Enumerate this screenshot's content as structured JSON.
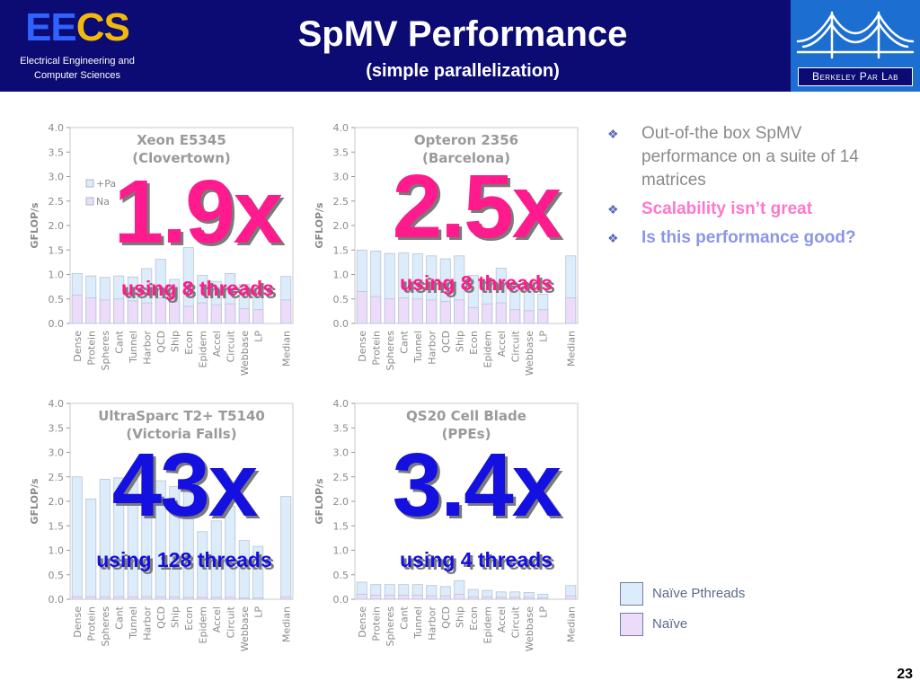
{
  "header": {
    "logo": {
      "ee": "EE",
      "cs": "CS",
      "subtitle_line1": "Electrical Engineering and",
      "subtitle_line2": "Computer Sciences"
    },
    "title": "SpMV Performance",
    "subtitle": "(simple parallelization)",
    "parlab": "Berkeley Par Lab"
  },
  "overlays": [
    {
      "value": "1.9x",
      "caption": "using 8 threads",
      "color": "pink"
    },
    {
      "value": "2.5x",
      "caption": "using 8 threads",
      "color": "pink"
    },
    {
      "value": "43x",
      "caption": "using 128 threads",
      "color": "blue"
    },
    {
      "value": "3.4x",
      "caption": "using 4 threads",
      "color": "blue"
    }
  ],
  "bullets": [
    {
      "text": "Out-of-the box SpMV performance on a suite of 14 matrices",
      "color": "#8a8a8a"
    },
    {
      "text": "Scalability isn’t great",
      "color": "#ff77cc",
      "bold": true
    },
    {
      "text": "Is this performance good?",
      "color": "#8a96e8",
      "bold": true
    }
  ],
  "legend": [
    {
      "label": "Naïve Pthreads",
      "color": "#dcecfa"
    },
    {
      "label": "Naïve",
      "color": "#ecdcfa"
    }
  ],
  "page_number": "23",
  "chart_data": [
    {
      "type": "bar",
      "title": "Xeon E5345",
      "subtitle": "(Clovertown)",
      "ylabel": "GFLOP/s",
      "ylim": [
        0,
        4.0
      ],
      "yticks": [
        "0.0",
        "0.5",
        "1.0",
        "1.5",
        "2.0",
        "2.5",
        "3.0",
        "3.5",
        "4.0"
      ],
      "categories": [
        "Dense",
        "Protein",
        "Spheres",
        "Cant",
        "Tunnel",
        "Harbor",
        "QCD",
        "Ship",
        "Econ",
        "Epidem",
        "Accel",
        "Circuit",
        "Webbase",
        "LP",
        "",
        "Median"
      ],
      "legend_fragments": [
        "+Pa",
        "Na"
      ],
      "series": [
        {
          "name": "Naïve Pthreads",
          "values": [
            1.02,
            0.97,
            0.94,
            0.97,
            0.95,
            1.12,
            1.31,
            0.9,
            1.55,
            0.98,
            0.86,
            1.02,
            0.8,
            0.65,
            null,
            0.96
          ]
        },
        {
          "name": "Naïve",
          "values": [
            0.58,
            0.52,
            0.48,
            0.5,
            0.46,
            0.42,
            0.52,
            0.44,
            0.35,
            0.42,
            0.38,
            0.4,
            0.3,
            0.28,
            null,
            0.48
          ]
        }
      ]
    },
    {
      "type": "bar",
      "title": "Opteron 2356",
      "subtitle": "(Barcelona)",
      "ylabel": "GFLOP/s",
      "ylim": [
        0,
        4.0
      ],
      "yticks": [
        "0.0",
        "0.5",
        "1.0",
        "1.5",
        "2.0",
        "2.5",
        "3.0",
        "3.5",
        "4.0"
      ],
      "categories": [
        "Dense",
        "Protein",
        "Spheres",
        "Cant",
        "Tunnel",
        "Harbor",
        "QCD",
        "Ship",
        "Econ",
        "Epidem",
        "Accel",
        "Circuit",
        "Webbase",
        "LP",
        "",
        "Median"
      ],
      "series": [
        {
          "name": "Naïve Pthreads",
          "values": [
            1.5,
            1.48,
            1.43,
            1.44,
            1.42,
            1.38,
            1.32,
            1.38,
            0.98,
            0.88,
            1.13,
            0.78,
            0.72,
            0.6,
            null,
            1.38
          ]
        },
        {
          "name": "Naïve",
          "values": [
            0.65,
            0.55,
            0.5,
            0.52,
            0.5,
            0.48,
            0.45,
            0.48,
            0.32,
            0.4,
            0.42,
            0.28,
            0.26,
            0.28,
            null,
            0.52
          ]
        }
      ]
    },
    {
      "type": "bar",
      "title": "UltraSparc T2+ T5140",
      "subtitle": "(Victoria Falls)",
      "ylabel": "GFLOP/s",
      "ylim": [
        0,
        4.0
      ],
      "yticks": [
        "0.0",
        "0.5",
        "1.0",
        "1.5",
        "2.0",
        "2.5",
        "3.0",
        "3.5",
        "4.0"
      ],
      "categories": [
        "Dense",
        "Protein",
        "Spheres",
        "Cant",
        "Tunnel",
        "Harbor",
        "QCD",
        "Ship",
        "Econ",
        "Epidem",
        "Accel",
        "Circuit",
        "Webbase",
        "LP",
        "",
        "Median"
      ],
      "series": [
        {
          "name": "Naïve Pthreads",
          "values": [
            2.5,
            2.05,
            2.45,
            2.48,
            2.45,
            2.4,
            2.42,
            2.3,
            2.2,
            1.38,
            1.6,
            1.9,
            1.2,
            1.08,
            null,
            2.1
          ]
        },
        {
          "name": "Naïve",
          "values": [
            0.05,
            0.05,
            0.05,
            0.05,
            0.05,
            0.05,
            0.05,
            0.05,
            0.04,
            0.04,
            0.04,
            0.04,
            0.03,
            0.03,
            null,
            0.05
          ]
        }
      ]
    },
    {
      "type": "bar",
      "title": "QS20 Cell Blade",
      "subtitle": "(PPEs)",
      "ylabel": "GFLOP/s",
      "ylim": [
        0,
        4.0
      ],
      "yticks": [
        "0.0",
        "0.5",
        "1.0",
        "1.5",
        "2.0",
        "2.5",
        "3.0",
        "3.5",
        "4.0"
      ],
      "categories": [
        "Dense",
        "Protein",
        "Spheres",
        "Cant",
        "Tunnel",
        "Harbor",
        "QCD",
        "Ship",
        "Econ",
        "Epidem",
        "Accel",
        "Circuit",
        "Webbase",
        "LP",
        "",
        "Median"
      ],
      "series": [
        {
          "name": "Naïve Pthreads",
          "values": [
            0.35,
            0.3,
            0.3,
            0.3,
            0.3,
            0.28,
            0.26,
            0.38,
            0.2,
            0.18,
            0.15,
            0.15,
            0.14,
            0.1,
            null,
            0.28
          ]
        },
        {
          "name": "Naïve",
          "values": [
            0.1,
            0.08,
            0.08,
            0.08,
            0.08,
            0.07,
            0.07,
            0.1,
            0.05,
            0.05,
            0.04,
            0.04,
            0.04,
            0.03,
            null,
            0.07
          ]
        }
      ]
    }
  ]
}
